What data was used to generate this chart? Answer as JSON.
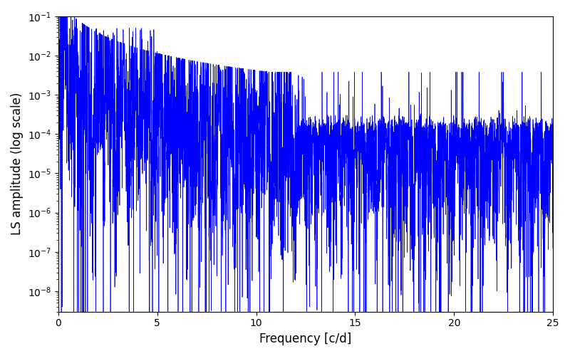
{
  "title": "",
  "xlabel": "Frequency [c/d]",
  "ylabel": "LS amplitude (log scale)",
  "xlim": [
    0,
    25
  ],
  "ylim_log": [
    3e-09,
    0.1
  ],
  "color": "#0000ff",
  "linewidth": 0.5,
  "figsize": [
    8.0,
    5.0
  ],
  "dpi": 100,
  "freq_max": 25.0,
  "n_points": 6000,
  "seed": 7,
  "background_color": "#ffffff",
  "xticks": [
    0,
    5,
    10,
    15,
    20,
    25
  ]
}
